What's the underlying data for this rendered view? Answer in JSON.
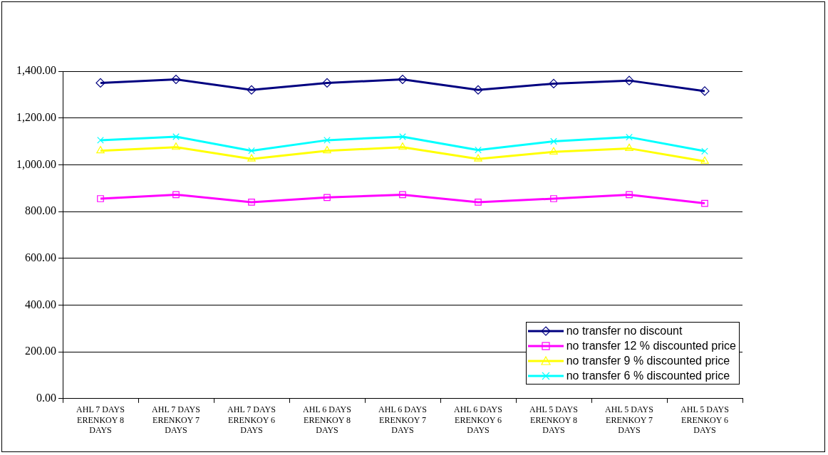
{
  "chart_data": {
    "type": "line",
    "categories": [
      "AHL 7 DAYS ERENKOY 8 DAYS",
      "AHL 7 DAYS ERENKOY 7 DAYS",
      "AHL 7 DAYS ERENKOY 6 DAYS",
      "AHL 6 DAYS ERENKOY 8 DAYS",
      "AHL 6 DAYS ERENKOY 7 DAYS",
      "AHL 6 DAYS ERENKOY 6 DAYS",
      "AHL 5 DAYS ERENKOY 8 DAYS",
      "AHL 5 DAYS ERENKOY 7 DAYS",
      "AHL 5 DAYS ERENKOY 6 DAYS"
    ],
    "series": [
      {
        "name": "no transfer no discount",
        "color": "#000080",
        "marker": "diamond",
        "values": [
          1350,
          1365,
          1320,
          1350,
          1365,
          1320,
          1347,
          1360,
          1315
        ]
      },
      {
        "name": "no transfer 12 % discounted price",
        "color": "#ff00ff",
        "marker": "square",
        "values": [
          855,
          872,
          840,
          860,
          872,
          840,
          855,
          872,
          835
        ]
      },
      {
        "name": "no transfer 9 % discounted price",
        "color": "#ffff00",
        "marker": "triangle",
        "values": [
          1060,
          1075,
          1025,
          1060,
          1075,
          1025,
          1055,
          1070,
          1015
        ]
      },
      {
        "name": "no transfer 6 % discounted price",
        "color": "#00ffff",
        "marker": "cross",
        "values": [
          1105,
          1120,
          1060,
          1105,
          1120,
          1063,
          1100,
          1118,
          1058
        ]
      }
    ],
    "ylim": [
      0,
      1400
    ],
    "yticks": [
      {
        "value": 0,
        "label": "0.00"
      },
      {
        "value": 200,
        "label": "200.00"
      },
      {
        "value": 400,
        "label": "400.00"
      },
      {
        "value": 600,
        "label": "600.00"
      },
      {
        "value": 800,
        "label": "800.00"
      },
      {
        "value": 1000,
        "label": "1,000.00"
      },
      {
        "value": 1200,
        "label": "1,200.00"
      },
      {
        "value": 1400,
        "label": "1,400.00"
      }
    ],
    "grid": "y",
    "legend": "bottom right",
    "line_style": "solid"
  }
}
